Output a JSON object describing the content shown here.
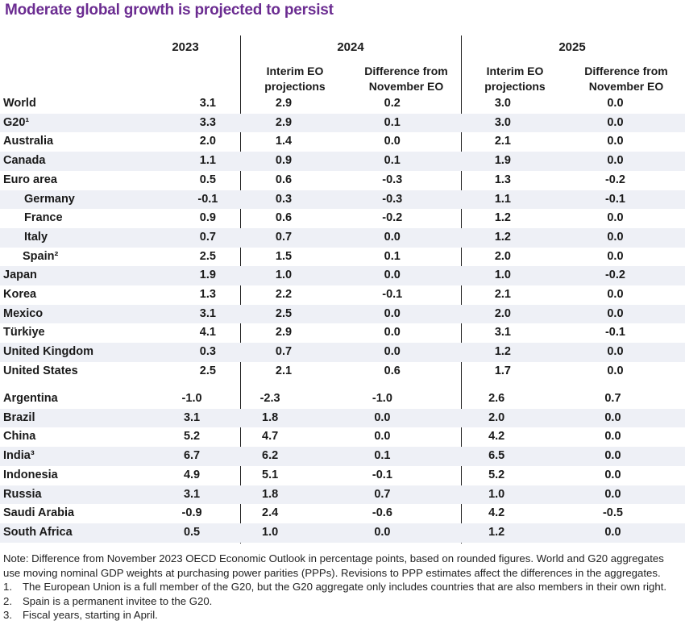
{
  "title": "Moderate global growth is projected to persist",
  "header": {
    "year_2023": "2023",
    "year_2024": "2024",
    "year_2025": "2025",
    "sub_interim_2024": "Interim EO projections",
    "sub_diff_2024": "Difference from November EO",
    "sub_interim_2025": "Interim EO projections",
    "sub_diff_2025": "Difference from November EO"
  },
  "group1": [
    {
      "country": "World",
      "y2023": "3.1",
      "int2024": "2.9",
      "diff2024": "0.2",
      "int2025": "3.0",
      "diff2025": "0.0"
    },
    {
      "country": "G20¹",
      "y2023": "3.3",
      "int2024": "2.9",
      "diff2024": "0.1",
      "int2025": "3.0",
      "diff2025": "0.0"
    },
    {
      "country": "Australia",
      "y2023": "2.0",
      "int2024": "1.4",
      "diff2024": "0.0",
      "int2025": "2.1",
      "diff2025": "0.0"
    },
    {
      "country": "Canada",
      "y2023": "1.1",
      "int2024": "0.9",
      "diff2024": "0.1",
      "int2025": "1.9",
      "diff2025": "0.0"
    },
    {
      "country": "Euro area",
      "y2023": "0.5",
      "int2024": "0.6",
      "diff2024": "-0.3",
      "int2025": "1.3",
      "diff2025": "-0.2"
    },
    {
      "country": "Germany",
      "y2023": "-0.1",
      "int2024": "0.3",
      "diff2024": "-0.3",
      "int2025": "1.1",
      "diff2025": "-0.1"
    },
    {
      "country": "France",
      "y2023": "0.9",
      "int2024": "0.6",
      "diff2024": "-0.2",
      "int2025": "1.2",
      "diff2025": "0.0"
    },
    {
      "country": "Italy",
      "y2023": "0.7",
      "int2024": "0.7",
      "diff2024": "0.0",
      "int2025": "1.2",
      "diff2025": "0.0"
    },
    {
      "country": "Spain²",
      "y2023": "2.5",
      "int2024": "1.5",
      "diff2024": "0.1",
      "int2025": "2.0",
      "diff2025": "0.0"
    },
    {
      "country": "Japan",
      "y2023": "1.9",
      "int2024": "1.0",
      "diff2024": "0.0",
      "int2025": "1.0",
      "diff2025": "-0.2"
    },
    {
      "country": "Korea",
      "y2023": "1.3",
      "int2024": "2.2",
      "diff2024": "-0.1",
      "int2025": "2.1",
      "diff2025": "0.0"
    },
    {
      "country": "Mexico",
      "y2023": "3.1",
      "int2024": "2.5",
      "diff2024": "0.0",
      "int2025": "2.0",
      "diff2025": "0.0"
    },
    {
      "country": "Türkiye",
      "y2023": "4.1",
      "int2024": "2.9",
      "diff2024": "0.0",
      "int2025": "3.1",
      "diff2025": "-0.1"
    },
    {
      "country": "United Kingdom",
      "y2023": "0.3",
      "int2024": "0.7",
      "diff2024": "0.0",
      "int2025": "1.2",
      "diff2025": "0.0"
    },
    {
      "country": "United States",
      "y2023": "2.5",
      "int2024": "2.1",
      "diff2024": "0.6",
      "int2025": "1.7",
      "diff2025": "0.0"
    }
  ],
  "group2": [
    {
      "country": "Argentina",
      "y2023": "-1.0",
      "int2024": "-2.3",
      "diff2024": "-1.0",
      "int2025": "2.6",
      "diff2025": "0.7"
    },
    {
      "country": "Brazil",
      "y2023": "3.1",
      "int2024": "1.8",
      "diff2024": "0.0",
      "int2025": "2.0",
      "diff2025": "0.0"
    },
    {
      "country": "China",
      "y2023": "5.2",
      "int2024": "4.7",
      "diff2024": "0.0",
      "int2025": "4.2",
      "diff2025": "0.0"
    },
    {
      "country": "India³",
      "y2023": "6.7",
      "int2024": "6.2",
      "diff2024": "0.1",
      "int2025": "6.5",
      "diff2025": "0.0"
    },
    {
      "country": "Indonesia",
      "y2023": "4.9",
      "int2024": "5.1",
      "diff2024": "-0.1",
      "int2025": "5.2",
      "diff2025": "0.0"
    },
    {
      "country": "Russia",
      "y2023": "3.1",
      "int2024": "1.8",
      "diff2024": "0.7",
      "int2025": "1.0",
      "diff2025": "0.0"
    },
    {
      "country": "Saudi Arabia",
      "y2023": "-0.9",
      "int2024": "2.4",
      "diff2024": "-0.6",
      "int2025": "4.2",
      "diff2025": "-0.5"
    },
    {
      "country": "South Africa",
      "y2023": "0.5",
      "int2024": "1.0",
      "diff2024": "0.0",
      "int2025": "1.2",
      "diff2025": "0.0"
    }
  ],
  "notes": {
    "line1": "Note: Difference from November 2023 OECD Economic Outlook in percentage points, based on rounded figures. World and G20 aggregates",
    "line2": "use moving nominal GDP weights at purchasing power parities (PPPs). Revisions to PPP estimates affect the differences in the aggregates.",
    "fn1_num": "1.",
    "fn1": "The European Union is a full member of the G20, but the G20 aggregate only includes countries that are also members in their own right.",
    "fn2_num": "2.",
    "fn2": "Spain is a permanent invitee to the G20.",
    "fn3_num": "3.",
    "fn3": "Fiscal years, starting in April."
  }
}
